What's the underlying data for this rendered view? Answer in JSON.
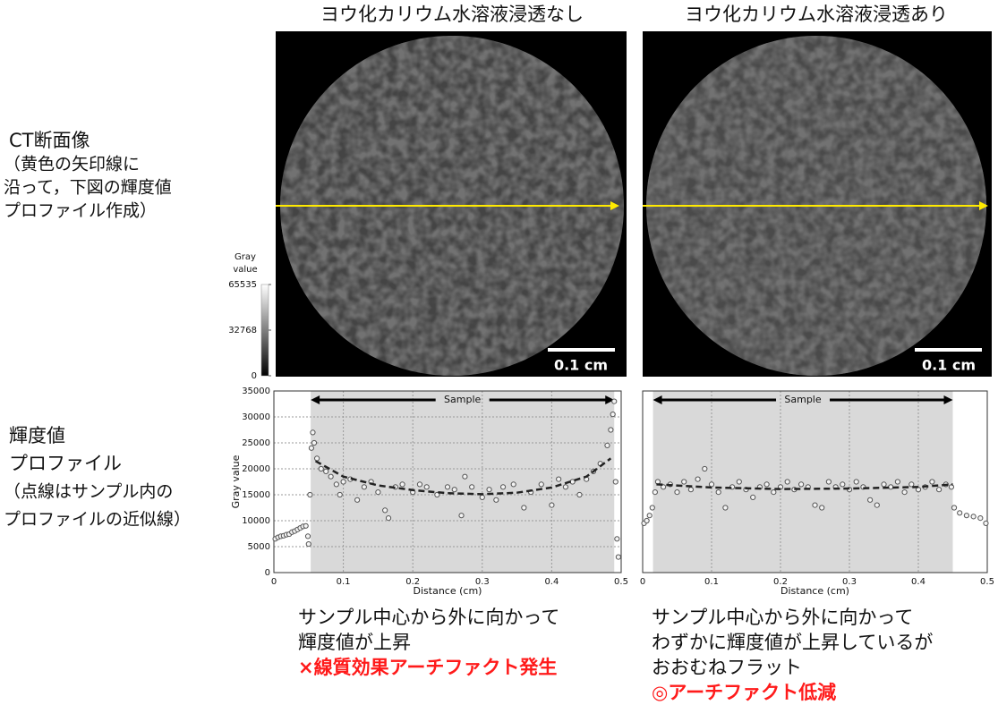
{
  "left_labels": {
    "ct": [
      "CT断面像",
      "（黄色の矢印線に",
      "沿って，下図の輝度値",
      "プロファイル作成）"
    ],
    "profile": [
      "輝度値",
      "プロファイル",
      "（点線はサンプル内の",
      "プロファイルの近似線）"
    ]
  },
  "images": [
    {
      "title": "ヨウ化カリウム水溶液浸透なし",
      "scale_bar": "0.1 cm"
    },
    {
      "title": "ヨウ化カリウム水溶液浸透あり",
      "scale_bar": "0.1 cm"
    }
  ],
  "colorbar": {
    "title": [
      "Gray",
      "value"
    ],
    "ticks": [
      65535,
      32768,
      0
    ]
  },
  "chart_data": [
    {
      "type": "scatter",
      "xlabel": "Distance (cm)",
      "ylabel": "Gray value",
      "annotation": "Sample",
      "highlight_x": [
        0.053,
        0.49
      ],
      "xlim": [
        0,
        0.5
      ],
      "ylim": [
        0,
        35000
      ],
      "xticks": [
        0,
        0.1,
        0.2,
        0.3,
        0.4,
        0.5
      ],
      "yticks": [
        0,
        5000,
        10000,
        15000,
        20000,
        25000,
        30000,
        35000
      ],
      "grid": true,
      "series": [
        {
          "color": "#555555",
          "x": [
            0.002,
            0.006,
            0.01,
            0.014,
            0.018,
            0.022,
            0.026,
            0.03,
            0.034,
            0.038,
            0.042,
            0.046,
            0.049,
            0.05,
            0.052,
            0.054,
            0.056,
            0.058,
            0.062,
            0.068,
            0.075,
            0.082,
            0.09,
            0.095,
            0.1,
            0.11,
            0.12,
            0.13,
            0.14,
            0.15,
            0.16,
            0.165,
            0.175,
            0.185,
            0.2,
            0.21,
            0.22,
            0.235,
            0.25,
            0.26,
            0.27,
            0.275,
            0.285,
            0.3,
            0.31,
            0.32,
            0.33,
            0.345,
            0.36,
            0.37,
            0.385,
            0.4,
            0.41,
            0.42,
            0.43,
            0.44,
            0.45,
            0.46,
            0.47,
            0.48,
            0.485,
            0.488,
            0.49,
            0.492,
            0.494,
            0.496
          ],
          "values": [
            6500,
            6800,
            7000,
            7100,
            7300,
            7400,
            7800,
            8000,
            8300,
            8600,
            8900,
            9000,
            7000,
            5500,
            15000,
            24000,
            27000,
            25000,
            22000,
            20000,
            19500,
            18500,
            17000,
            15000,
            17500,
            18000,
            14000,
            16500,
            17500,
            15500,
            12000,
            10500,
            16500,
            17000,
            15500,
            17000,
            16500,
            15000,
            16500,
            16000,
            11000,
            18500,
            16500,
            14500,
            16000,
            14000,
            16500,
            17000,
            12500,
            15500,
            17000,
            13000,
            18000,
            16500,
            17500,
            15000,
            18000,
            19500,
            21000,
            24500,
            27500,
            30500,
            33000,
            17500,
            6500,
            3000
          ]
        },
        {
          "type": "line",
          "line_style": "dashed",
          "color": "#222222",
          "x": [
            0.06,
            0.1,
            0.15,
            0.2,
            0.25,
            0.3,
            0.35,
            0.4,
            0.45,
            0.485
          ],
          "values": [
            21500,
            18500,
            16800,
            15900,
            15300,
            15100,
            15400,
            16400,
            18500,
            22000
          ]
        }
      ]
    },
    {
      "type": "scatter",
      "xlabel": "Distance (cm)",
      "annotation": "Sample",
      "highlight_x": [
        0.015,
        0.45
      ],
      "xlim": [
        0,
        0.5
      ],
      "ylim": [
        0,
        35000
      ],
      "xticks": [
        0,
        0.1,
        0.2,
        0.3,
        0.4,
        0.5
      ],
      "grid": true,
      "series": [
        {
          "color": "#555555",
          "x": [
            0.002,
            0.006,
            0.01,
            0.014,
            0.018,
            0.022,
            0.03,
            0.04,
            0.05,
            0.06,
            0.07,
            0.08,
            0.09,
            0.1,
            0.11,
            0.12,
            0.13,
            0.14,
            0.15,
            0.16,
            0.17,
            0.18,
            0.19,
            0.2,
            0.21,
            0.22,
            0.23,
            0.24,
            0.25,
            0.26,
            0.27,
            0.28,
            0.29,
            0.3,
            0.31,
            0.32,
            0.33,
            0.34,
            0.35,
            0.36,
            0.37,
            0.38,
            0.39,
            0.4,
            0.41,
            0.42,
            0.43,
            0.44,
            0.448,
            0.452,
            0.46,
            0.47,
            0.48,
            0.49,
            0.498
          ],
          "values": [
            9500,
            10000,
            11000,
            12500,
            15500,
            17500,
            16500,
            17000,
            15500,
            17500,
            16000,
            18000,
            20000,
            17000,
            15500,
            12500,
            16500,
            17500,
            16000,
            14500,
            16500,
            17000,
            15500,
            16500,
            17500,
            16000,
            17000,
            16500,
            13000,
            12500,
            17500,
            16500,
            17000,
            16000,
            17500,
            16500,
            14000,
            13000,
            17000,
            16500,
            17500,
            15500,
            17000,
            16000,
            16500,
            17500,
            16000,
            17000,
            16500,
            12500,
            11500,
            11000,
            10800,
            10500,
            9500
          ]
        },
        {
          "type": "line",
          "line_style": "dashed",
          "color": "#222222",
          "x": [
            0.02,
            0.1,
            0.2,
            0.3,
            0.4,
            0.45
          ],
          "values": [
            17000,
            16400,
            16100,
            16200,
            16500,
            17000
          ]
        }
      ]
    }
  ],
  "captions": [
    {
      "lines": [
        "サンプル中心から外に向かって",
        "輝度値が上昇"
      ],
      "verdict": "×線質効果アーチファクト発生"
    },
    {
      "lines": [
        "サンプル中心から外に向かって",
        "わずかに輝度値が上昇しているが",
        "おおむねフラット"
      ],
      "verdict": "◎アーチファクト低減"
    }
  ]
}
